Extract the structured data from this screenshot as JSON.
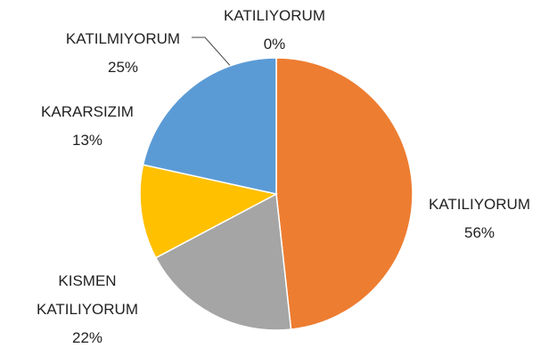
{
  "chart_data": {
    "type": "pie",
    "categories": [
      "KATILIYORUM",
      "KATILIYORUM",
      "KISMEN KATILIYORUM",
      "KARARSIZIM",
      "KATILMIYORUM"
    ],
    "values": [
      0,
      56,
      22,
      13,
      25
    ],
    "value_labels": [
      "0%",
      "56%",
      "22%",
      "13%",
      "25%"
    ],
    "colors": [
      "#4472c4",
      "#ed7d31",
      "#a5a5a5",
      "#ffc000",
      "#5b9bd5"
    ]
  }
}
